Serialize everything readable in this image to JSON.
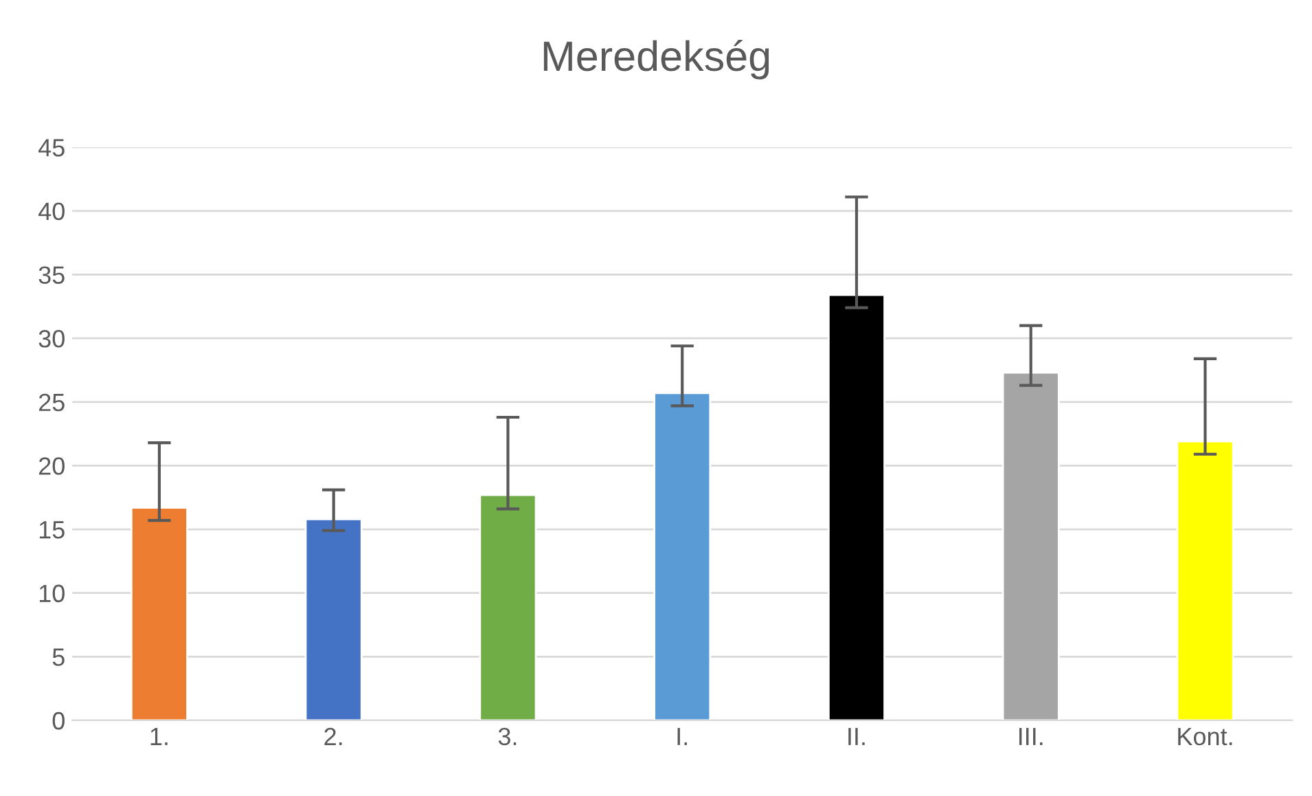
{
  "chart_data": {
    "type": "bar",
    "title": "Meredekség",
    "categories": [
      "1.",
      "2.",
      "3.",
      "I.",
      "II.",
      "III.",
      "Kont."
    ],
    "values": [
      16.7,
      15.8,
      17.7,
      25.7,
      33.4,
      27.3,
      21.9
    ],
    "colors": [
      "#ed7d31",
      "#4472c4",
      "#70ad47",
      "#5b9bd5",
      "#000000",
      "#a5a5a5",
      "#ffff00"
    ],
    "errors": [
      [
        15.7,
        21.8
      ],
      [
        14.9,
        18.1
      ],
      [
        16.6,
        23.8
      ],
      [
        24.7,
        29.4
      ],
      [
        32.4,
        41.1
      ],
      [
        26.3,
        31.0
      ],
      [
        20.9,
        28.4
      ]
    ],
    "ylim": [
      0,
      45
    ],
    "yticks": [
      0,
      5,
      10,
      15,
      20,
      25,
      30,
      35,
      40,
      45
    ],
    "grid": "y"
  }
}
